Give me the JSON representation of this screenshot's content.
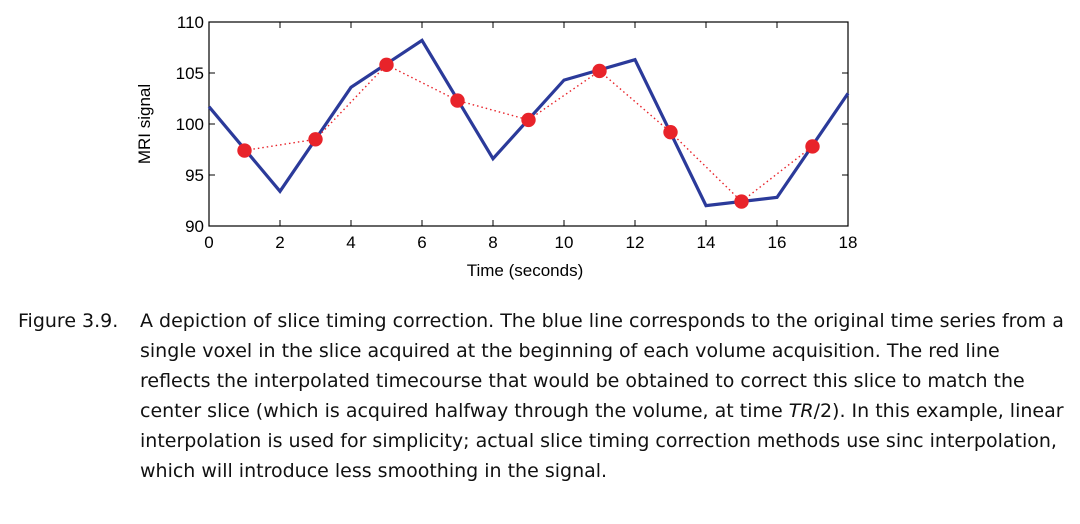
{
  "chart_data": {
    "type": "line",
    "xlabel": "Time (seconds)",
    "ylabel": "MRI signal",
    "xlim": [
      0,
      18
    ],
    "ylim": [
      90,
      110
    ],
    "xticks": [
      0,
      2,
      4,
      6,
      8,
      10,
      12,
      14,
      16,
      18
    ],
    "yticks": [
      90,
      95,
      100,
      105,
      110
    ],
    "grid": false,
    "series": [
      {
        "style": "solid",
        "color": "#2b3a9a",
        "x": [
          0,
          2,
          4,
          6,
          8,
          10,
          12,
          14,
          16,
          18
        ],
        "y": [
          101.7,
          93.4,
          103.6,
          108.2,
          96.6,
          104.3,
          106.3,
          92.0,
          92.8,
          103.0
        ]
      },
      {
        "style": "dotted-with-markers",
        "color": "#e8232a",
        "x": [
          1,
          3,
          5,
          7,
          9,
          11,
          13,
          15,
          17
        ],
        "y": [
          97.4,
          98.5,
          105.8,
          102.3,
          100.4,
          105.2,
          99.2,
          92.4,
          97.8
        ]
      }
    ]
  },
  "caption": {
    "label": "Figure 3.9.",
    "text_before": "A depiction of slice timing correction. The blue line corresponds to the original time series from a single voxel in the slice acquired at the beginning of each volume acquisition. The red line reflects the interpolated timecourse that would be obtained to correct this slice to match the center slice (which is acquired halfway through the volume, at time ",
    "text_italic": "TR",
    "text_after": "/2). In this example, linear interpolation is used for simplicity; actual slice timing correction methods use sinc interpolation, which will introduce less smoothing in the signal."
  }
}
